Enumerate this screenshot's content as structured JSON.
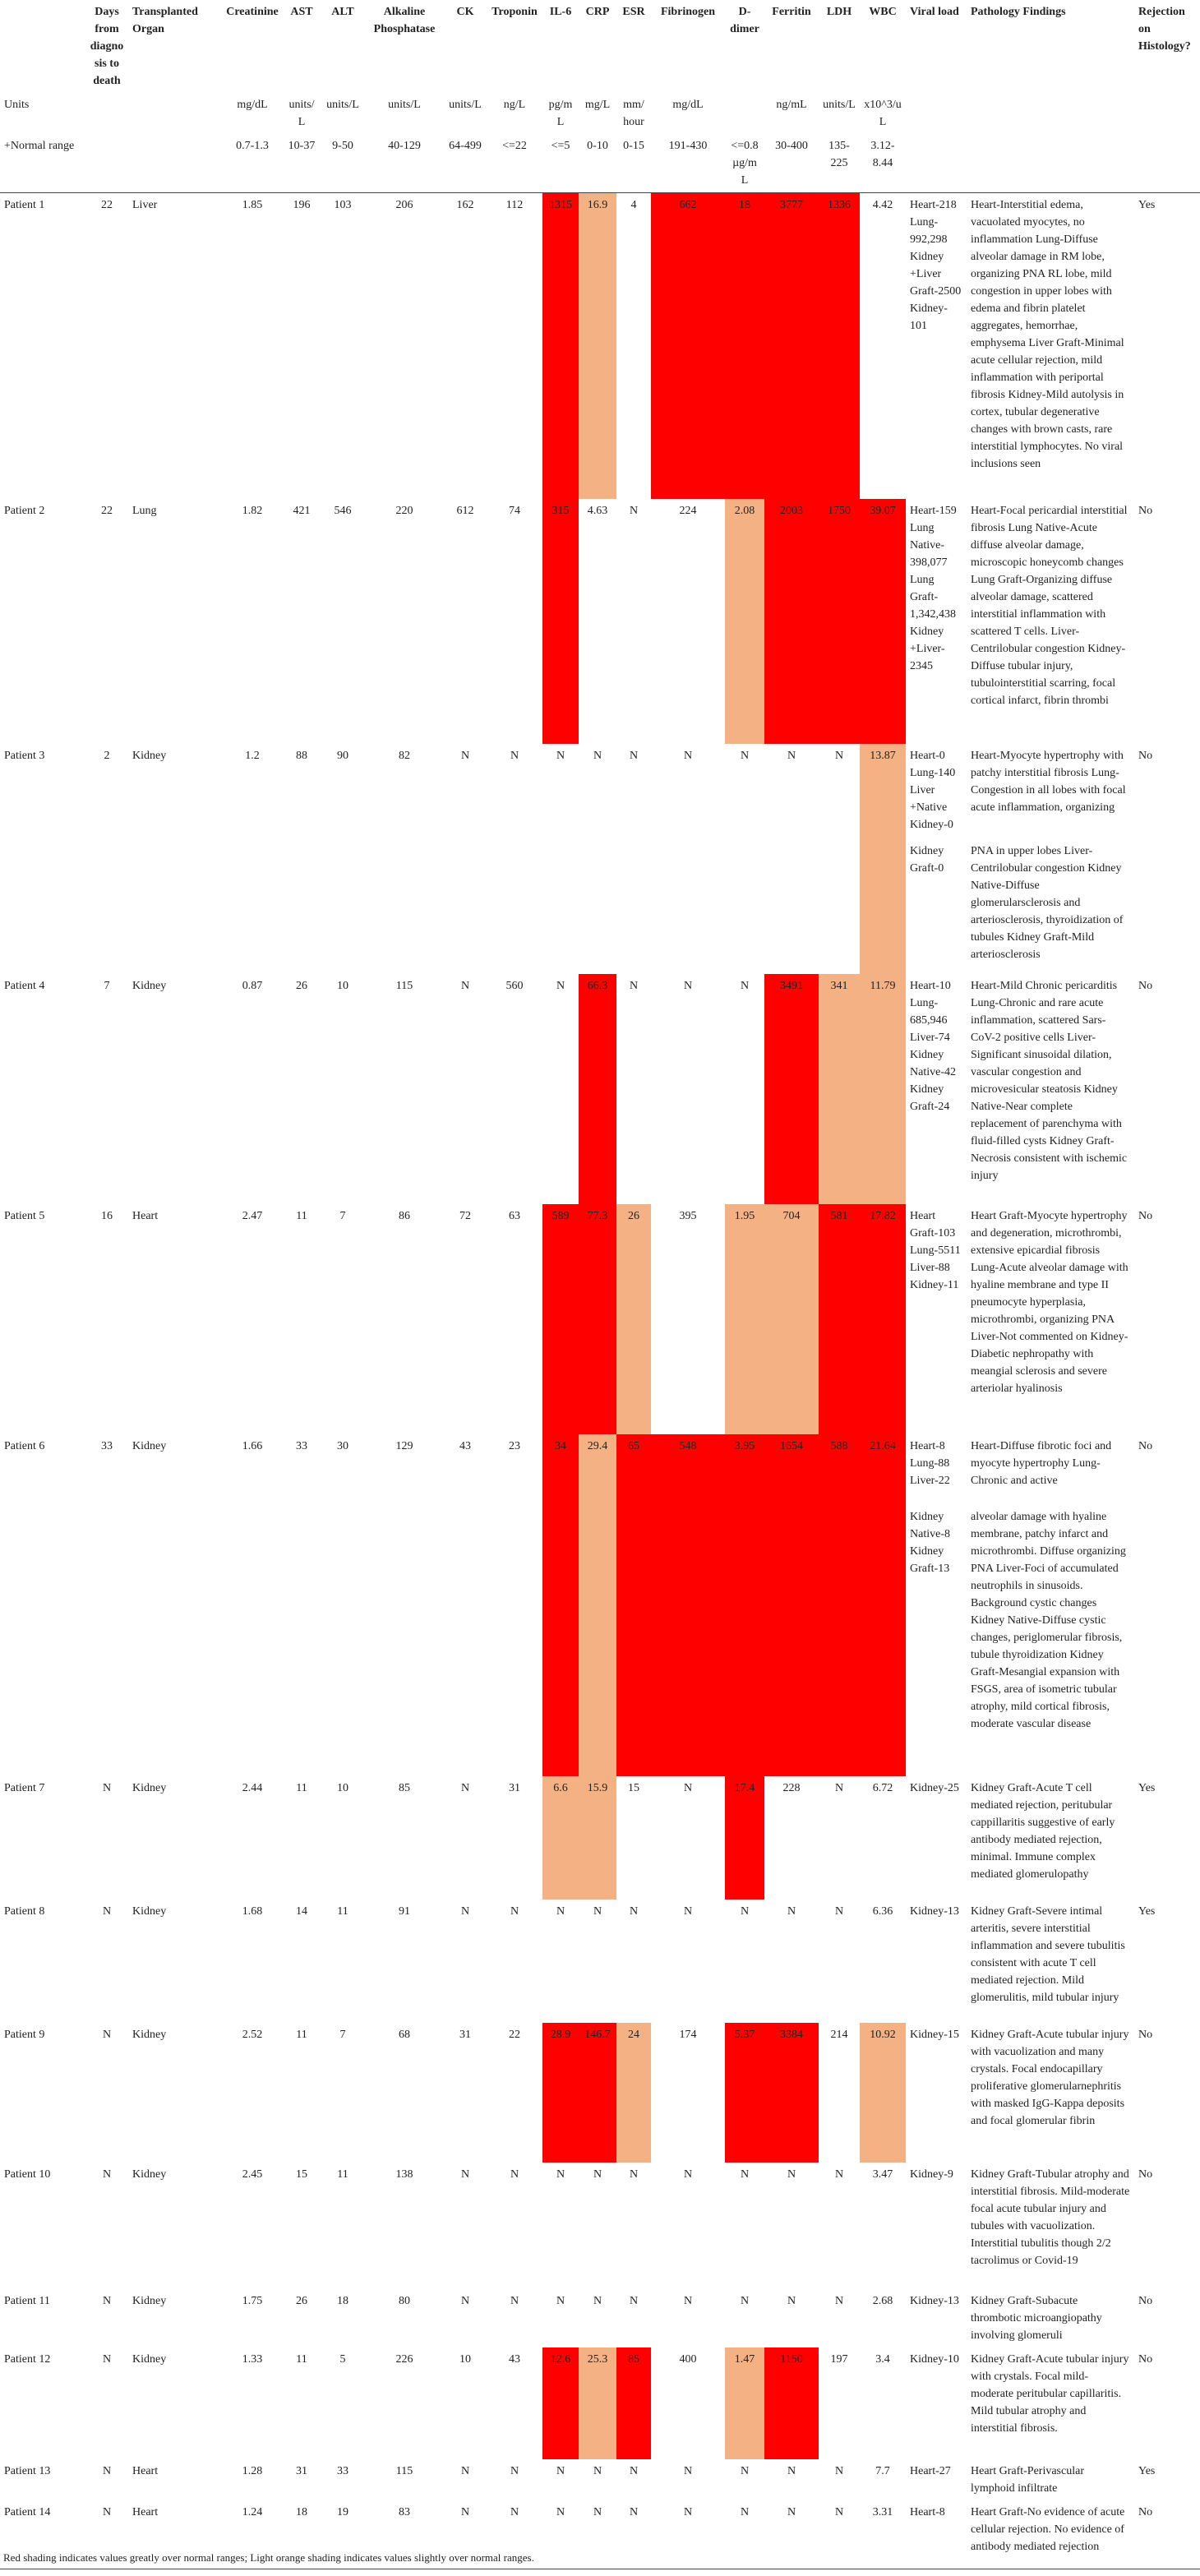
{
  "colors": {
    "red": "#ff0000",
    "orange": "#f4b183"
  },
  "header": {
    "columns": [
      null,
      "Days from diagnosis to death",
      "Transplanted Organ",
      "Creatinine",
      "AST",
      "ALT",
      "Alkaline Phosphatase",
      "CK",
      "Troponin",
      "IL-6",
      "CRP",
      "ESR",
      "Fibrinogen",
      "D-dimer",
      "Ferritin",
      "LDH",
      "WBC",
      "Viral load",
      "Pathology Findings",
      "Rejection on Histology?"
    ],
    "units": [
      "Units",
      null,
      null,
      "mg/dL",
      "units/L",
      "units/L",
      "units/L",
      "units/L",
      "ng/L",
      "pg/mL",
      "mg/L",
      "mm/hour",
      "mg/dL",
      null,
      "ng/mL",
      "units/L",
      "x10^3/uL",
      null,
      null,
      null
    ],
    "ranges": [
      "+Normal range",
      null,
      null,
      "0.7-1.3",
      "10-37",
      "9-50",
      "40-129",
      "64-499",
      "<=22",
      "<=5",
      "0-10",
      "0-15",
      "191-430",
      "<=0.8 µg/mL",
      "30-400",
      "135-225",
      "3.12-8.44",
      null,
      null,
      null
    ]
  },
  "rows": [
    {
      "cells": [
        "Patient 1",
        "22",
        "Liver",
        "1.85",
        "196",
        "103",
        "206",
        "162",
        "112",
        "1315",
        "16.9",
        "4",
        "662",
        "18",
        "3777",
        "1336",
        "4.42",
        "Heart-218 Lung-992,298 Kidney +Liver Graft-2500 Kidney-101",
        "Heart-Interstitial edema, vacuolated myocytes, no inflammation Lung-Diffuse alveolar damage in RM lobe, organizing PNA RL lobe, mild congestion in upper lobes with edema and fibrin platelet aggregates, hemorrhae, emphysema Liver Graft-Minimal acute cellular rejection, mild inflammation with periportal fibrosis Kidney-Mild autolysis in cortex, tubular degenerative changes with brown casts, rare interstitial lymphocytes. No viral inclusions seen",
        "Yes"
      ],
      "red": [
        9,
        12,
        13,
        14,
        15
      ],
      "orange": [
        10
      ]
    },
    {
      "cells": [
        "Patient 2",
        "22",
        "Lung",
        "1.82",
        "421",
        "546",
        "220",
        "612",
        "74",
        "315",
        "4.63",
        "N",
        "224",
        "2.08",
        "2003",
        "1750",
        "39.07",
        "Heart-159 Lung Native-398,077 Lung Graft-1,342,438 Kidney +Liver-2345",
        "Heart-Focal pericardial interstitial fibrosis Lung Native-Acute diffuse alveolar damage, microscopic honeycomb changes Lung Graft-Organizing diffuse alveolar damage, scattered interstitial inflammation with scattered T cells. Liver-Centrilobular congestion Kidney-Diffuse tubular injury, tubulointerstitial scarring, focal cortical infarct, fibrin thrombi",
        "No"
      ],
      "red": [
        9,
        14,
        15,
        16
      ],
      "orange": [
        13
      ]
    },
    {
      "cells": [
        "Patient 3",
        "2",
        "Kidney",
        "1.2",
        "88",
        "90",
        "82",
        "N",
        "N",
        "N",
        "N",
        "N",
        "N",
        "N",
        "N",
        "N",
        "13.87",
        "Heart-0 Lung-140 Liver +Native Kidney-0",
        "Heart-Myocyte hypertrophy with patchy interstitial fibrosis Lung-Congestion in all lobes with focal acute inflammation, organizing",
        "No"
      ],
      "orange": [
        16
      ]
    },
    {
      "cells": [
        null,
        null,
        null,
        null,
        null,
        null,
        null,
        null,
        null,
        null,
        null,
        null,
        null,
        null,
        null,
        null,
        null,
        "Kidney Graft-0",
        "PNA in upper lobes Liver-Centrilobular congestion Kidney Native-Diffuse glomerularsclerosis and arteriosclerosis, thyroidization of tubules Kidney Graft-Mild arteriosclerosis",
        null
      ],
      "orange": [
        16
      ]
    },
    {
      "cells": [
        "Patient 4",
        "7",
        "Kidney",
        "0.87",
        "26",
        "10",
        "115",
        "N",
        "560",
        "N",
        "66.3",
        "N",
        "N",
        "N",
        "3491",
        "341",
        "11.79",
        "Heart-10 Lung-685,946 Liver-74 Kidney Native-42 Kidney Graft-24",
        "Heart-Mild Chronic pericarditis Lung-Chronic and rare acute inflammation, scattered Sars-CoV-2 positive cells Liver-Significant sinusoidal dilation, vascular congestion and microvesicular steatosis Kidney Native-Near complete replacement of parenchyma with fluid-filled cysts Kidney Graft-Necrosis consistent with ischemic injury",
        "No"
      ],
      "red": [
        10,
        14
      ],
      "orange": [
        15,
        16
      ]
    },
    {
      "cells": [
        "Patient 5",
        "16",
        "Heart",
        "2.47",
        "11",
        "7",
        "86",
        "72",
        "63",
        "589",
        "77.3",
        "26",
        "395",
        "1.95",
        "704",
        "581",
        "17.82",
        "Heart Graft-103 Lung-5511 Liver-88 Kidney-11",
        "Heart Graft-Myocyte hypertrophy and degeneration, microthrombi, extensive epicardial fibrosis Lung-Acute alveolar damage with hyaline membrane and type II pneumocyte hyperplasia, microthrombi, organizing PNA Liver-Not commented on Kidney-Diabetic nephropathy with meangial sclerosis and severe arteriolar hyalinosis",
        "No"
      ],
      "red": [
        9,
        10,
        15,
        16
      ],
      "orange": [
        11,
        13,
        14
      ]
    },
    {
      "cells": [
        "Patient 6",
        "33",
        "Kidney",
        "1.66",
        "33",
        "30",
        "129",
        "43",
        "23",
        "34",
        "29.4",
        "65",
        "548",
        "3.95",
        "1654",
        "588",
        "21.64",
        "Heart-8 Lung-88 Liver-22",
        "Heart-Diffuse fibrotic foci and myocyte hypertrophy Lung-Chronic and active",
        "No"
      ],
      "red": [
        9,
        11,
        12,
        13,
        14,
        15,
        16
      ],
      "orange": [
        10
      ]
    },
    {
      "cells": [
        null,
        null,
        null,
        null,
        null,
        null,
        null,
        null,
        null,
        null,
        null,
        null,
        null,
        null,
        null,
        null,
        null,
        "Kidney Native-8 Kidney Graft-13",
        "alveolar damage with hyaline membrane, patchy infarct and microthrombi. Diffuse organizing PNA Liver-Foci of accumulated neutrophils in sinusoids. Background cystic changes Kidney Native-Diffuse cystic changes, periglomerular fibrosis, tubule thyroidization Kidney Graft-Mesangial expansion with FSGS, area of isometric tubular atrophy, mild cortical fibrosis, moderate vascular disease",
        null
      ],
      "red": [
        9,
        11,
        12,
        13,
        14,
        15,
        16
      ],
      "orange": [
        10
      ]
    },
    {
      "cells": [
        "Patient 7",
        "N",
        "Kidney",
        "2.44",
        "11",
        "10",
        "85",
        "N",
        "31",
        "6.6",
        "15.9",
        "15",
        "N",
        "17.4",
        "228",
        "N",
        "6.72",
        "Kidney-25",
        "Kidney Graft-Acute T cell mediated rejection, peritubular cappillaritis suggestive of early antibody mediated rejection, minimal. Immune complex mediated glomerulopathy",
        "Yes"
      ],
      "red": [
        13
      ],
      "orange": [
        9,
        10
      ]
    },
    {
      "cells": [
        "Patient 8",
        "N",
        "Kidney",
        "1.68",
        "14",
        "11",
        "91",
        "N",
        "N",
        "N",
        "N",
        "N",
        "N",
        "N",
        "N",
        "N",
        "6.36",
        "Kidney-13",
        "Kidney Graft-Severe intimal arteritis, severe interstitial inflammation and severe tubulitis consistent with acute T cell mediated rejection. Mild glomerulitis, mild tubular injury",
        "Yes"
      ]
    },
    {
      "cells": [
        "Patient 9",
        "N",
        "Kidney",
        "2.52",
        "11",
        "7",
        "68",
        "31",
        "22",
        "28.9",
        "146.7",
        "24",
        "174",
        "5.37",
        "3384",
        "214",
        "10.92",
        "Kidney-15",
        "Kidney Graft-Acute tubular injury with vacuolization and many crystals. Focal endocapillary proliferative glomerularnephritis with masked IgG-Kappa deposits and focal glomerular fibrin",
        "No"
      ],
      "red": [
        9,
        10,
        13,
        14
      ],
      "orange": [
        11,
        16
      ]
    },
    {
      "cells": [
        "Patient 10",
        "N",
        "Kidney",
        "2.45",
        "15",
        "11",
        "138",
        "N",
        "N",
        "N",
        "N",
        "N",
        "N",
        "N",
        "N",
        "N",
        "3.47",
        "Kidney-9",
        "Kidney Graft-Tubular atrophy and interstitial fibrosis. Mild-moderate focal acute tubular injury and tubules with vacuolization. Interstitial tubulitis though 2/2 tacrolimus or Covid-19",
        "No"
      ]
    },
    {
      "cells": [
        "Patient 11",
        "N",
        "Kidney",
        "1.75",
        "26",
        "18",
        "80",
        "N",
        "N",
        "N",
        "N",
        "N",
        "N",
        "N",
        "N",
        "N",
        "2.68",
        "Kidney-13",
        "Kidney Graft-Subacute thrombotic microangiopathy involving glomeruli",
        "No"
      ]
    },
    {
      "cells": [
        "Patient 12",
        "N",
        "Kidney",
        "1.33",
        "11",
        "5",
        "226",
        "10",
        "43",
        "12.6",
        "25.3",
        "85",
        "400",
        "1.47",
        "1150",
        "197",
        "3.4",
        "Kidney-10",
        "Kidney Graft-Acute tubular injury with crystals. Focal mild-moderate peritubular capillaritis. Mild tubular atrophy and interstitial fibrosis.",
        "No"
      ],
      "red": [
        9,
        11,
        14
      ],
      "orange": [
        10,
        13
      ]
    },
    {
      "cells": [
        "Patient 13",
        "N",
        "Heart",
        "1.28",
        "31",
        "33",
        "115",
        "N",
        "N",
        "N",
        "N",
        "N",
        "N",
        "N",
        "N",
        "N",
        "7.7",
        "Heart-27",
        "Heart Graft-Perivascular lymphoid infiltrate",
        "Yes"
      ]
    },
    {
      "cells": [
        "Patient 14",
        "N",
        "Heart",
        "1.24",
        "18",
        "19",
        "83",
        "N",
        "N",
        "N",
        "N",
        "N",
        "N",
        "N",
        "N",
        "N",
        "3.31",
        "Heart-8",
        "Heart Graft-No evidence of acute cellular rejection. No evidence of antibody mediated rejection",
        "No"
      ]
    }
  ],
  "footnote": "Red shading indicates values greatly over normal ranges; Light orange shading indicates values slightly over normal ranges."
}
